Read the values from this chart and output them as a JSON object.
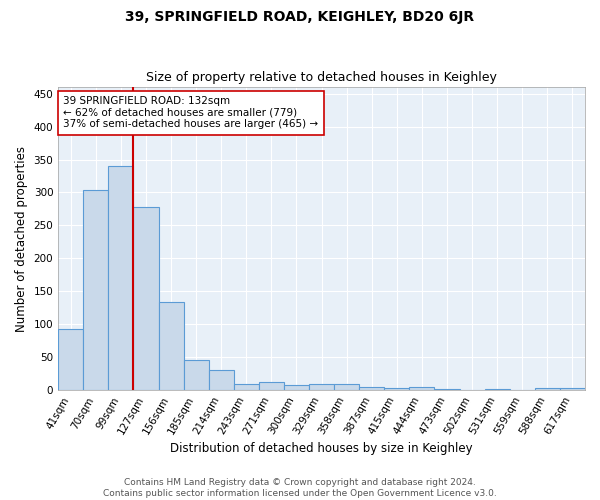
{
  "title1": "39, SPRINGFIELD ROAD, KEIGHLEY, BD20 6JR",
  "title2": "Size of property relative to detached houses in Keighley",
  "xlabel": "Distribution of detached houses by size in Keighley",
  "ylabel": "Number of detached properties",
  "footer1": "Contains HM Land Registry data © Crown copyright and database right 2024.",
  "footer2": "Contains public sector information licensed under the Open Government Licence v3.0.",
  "categories": [
    "41sqm",
    "70sqm",
    "99sqm",
    "127sqm",
    "156sqm",
    "185sqm",
    "214sqm",
    "243sqm",
    "271sqm",
    "300sqm",
    "329sqm",
    "358sqm",
    "387sqm",
    "415sqm",
    "444sqm",
    "473sqm",
    "502sqm",
    "531sqm",
    "559sqm",
    "588sqm",
    "617sqm"
  ],
  "values": [
    92,
    304,
    340,
    278,
    133,
    46,
    30,
    10,
    13,
    7,
    9,
    10,
    4,
    3,
    5,
    2,
    0,
    2,
    0,
    3,
    3
  ],
  "bar_color": "#c9d9ea",
  "bar_edge_color": "#5b9bd5",
  "bar_edge_width": 0.8,
  "red_line_index": 3,
  "red_line_color": "#cc0000",
  "annotation_line1": "39 SPRINGFIELD ROAD: 132sqm",
  "annotation_line2": "← 62% of detached houses are smaller (779)",
  "annotation_line3": "37% of semi-detached houses are larger (465) →",
  "annotation_box_color": "white",
  "annotation_box_edge_color": "#cc0000",
  "ylim": [
    0,
    460
  ],
  "yticks": [
    0,
    50,
    100,
    150,
    200,
    250,
    300,
    350,
    400,
    450
  ],
  "background_color": "#e8f0f8",
  "grid_color": "white",
  "title1_fontsize": 10,
  "title2_fontsize": 9,
  "xlabel_fontsize": 8.5,
  "ylabel_fontsize": 8.5,
  "tick_fontsize": 7.5,
  "annotation_fontsize": 7.5,
  "footer_fontsize": 6.5
}
